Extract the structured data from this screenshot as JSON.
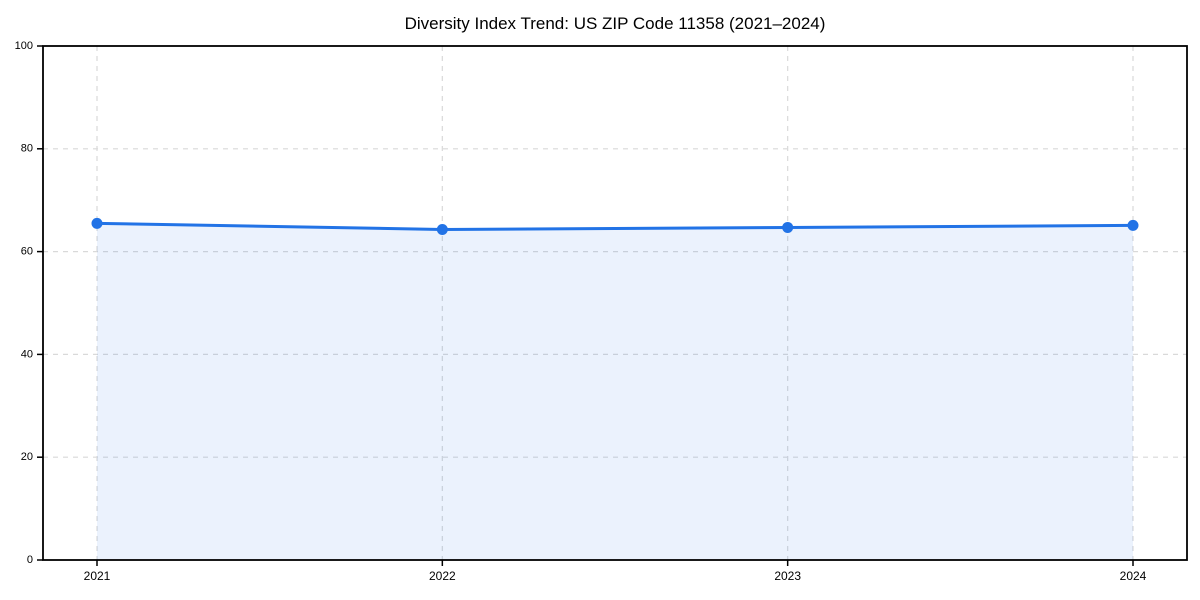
{
  "title": "Diversity Index Trend: US ZIP Code 11358 (2021–2024)",
  "chart_data": {
    "type": "area",
    "title": "Diversity Index Trend: US ZIP Code 11358 (2021–2024)",
    "x": [
      2021,
      2022,
      2023,
      2024
    ],
    "categories": [
      "2021",
      "2022",
      "2023",
      "2024"
    ],
    "series": [
      {
        "name": "Diversity Index",
        "values": [
          65.5,
          64.3,
          64.7,
          65.1
        ]
      }
    ],
    "xlabel": "",
    "ylabel": "",
    "ylim": [
      0,
      100
    ],
    "yticks": [
      0,
      20,
      40,
      60,
      80,
      100
    ],
    "xticks": [
      "2021",
      "2022",
      "2023",
      "2024"
    ],
    "grid": true,
    "grid_style": "dashed",
    "legend": false,
    "colors": {
      "line": "#2273e6",
      "marker": "#2273e6",
      "fill": "rgba(34,115,230,0.09)",
      "grid": "#d9d9d9",
      "spine": "#000000",
      "background": "#ffffff",
      "tick_label": "#000000"
    }
  }
}
